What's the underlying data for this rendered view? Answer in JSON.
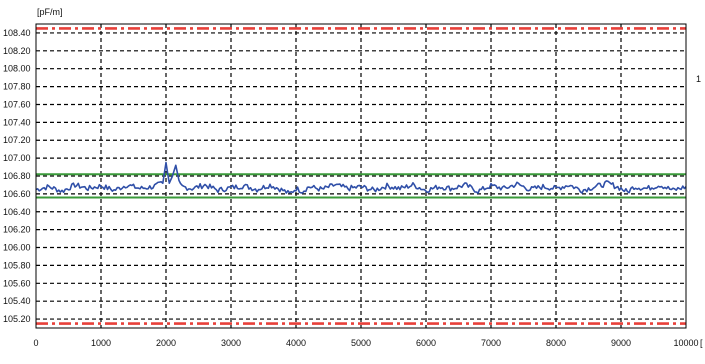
{
  "chart_data": {
    "type": "line",
    "y_unit": "[pF/m]",
    "x_unit": "[",
    "right_mark": "1",
    "xlim": [
      0,
      10000
    ],
    "ylim": [
      105.1,
      108.5
    ],
    "grid": true,
    "x_ticks": [
      0,
      1000,
      2000,
      3000,
      4000,
      5000,
      6000,
      7000,
      8000,
      9000,
      10000
    ],
    "y_ticks": [
      "108.40",
      "108.20",
      "108.00",
      "107.80",
      "107.60",
      "107.40",
      "107.20",
      "107.00",
      "106.80",
      "106.60",
      "106.40",
      "106.20",
      "106.00",
      "105.80",
      "105.60",
      "105.40",
      "105.20"
    ],
    "limit_lines": [
      {
        "kind": "upper-limit",
        "value": 108.45,
        "color": "#e8403a"
      },
      {
        "kind": "upper-tolerance",
        "value": 106.82,
        "color": "#3a9a3a"
      },
      {
        "kind": "lower-tolerance",
        "value": 106.56,
        "color": "#3a9a3a"
      },
      {
        "kind": "lower-limit",
        "value": 105.15,
        "color": "#e8403a"
      }
    ],
    "series": [
      {
        "color": "#2f4fa8",
        "x": [
          0,
          200,
          400,
          600,
          800,
          1000,
          1200,
          1400,
          1600,
          1800,
          1950,
          2000,
          2050,
          2100,
          2150,
          2200,
          2250,
          2400,
          2600,
          2800,
          3000,
          3200,
          3400,
          3600,
          3800,
          3900,
          4000,
          4100,
          4200,
          4400,
          4600,
          4800,
          5000,
          5200,
          5400,
          5600,
          5800,
          6000,
          6200,
          6400,
          6600,
          6800,
          7000,
          7200,
          7400,
          7600,
          7800,
          8000,
          8200,
          8400,
          8600,
          8800,
          9000,
          9100,
          9200,
          9400,
          9600,
          9800,
          10000
        ],
        "y": [
          106.65,
          106.68,
          106.63,
          106.7,
          106.66,
          106.69,
          106.64,
          106.7,
          106.66,
          106.68,
          106.72,
          106.95,
          106.72,
          106.8,
          106.92,
          106.75,
          106.68,
          106.66,
          106.7,
          106.64,
          106.67,
          106.69,
          106.65,
          106.7,
          106.64,
          106.6,
          106.66,
          106.63,
          106.68,
          106.65,
          106.7,
          106.66,
          106.68,
          106.64,
          106.69,
          106.66,
          106.7,
          106.64,
          106.68,
          106.66,
          106.7,
          106.63,
          106.69,
          106.66,
          106.71,
          106.65,
          106.68,
          106.66,
          106.7,
          106.64,
          106.68,
          106.72,
          106.66,
          106.62,
          106.68,
          106.66,
          106.7,
          106.64,
          106.68
        ]
      }
    ]
  }
}
